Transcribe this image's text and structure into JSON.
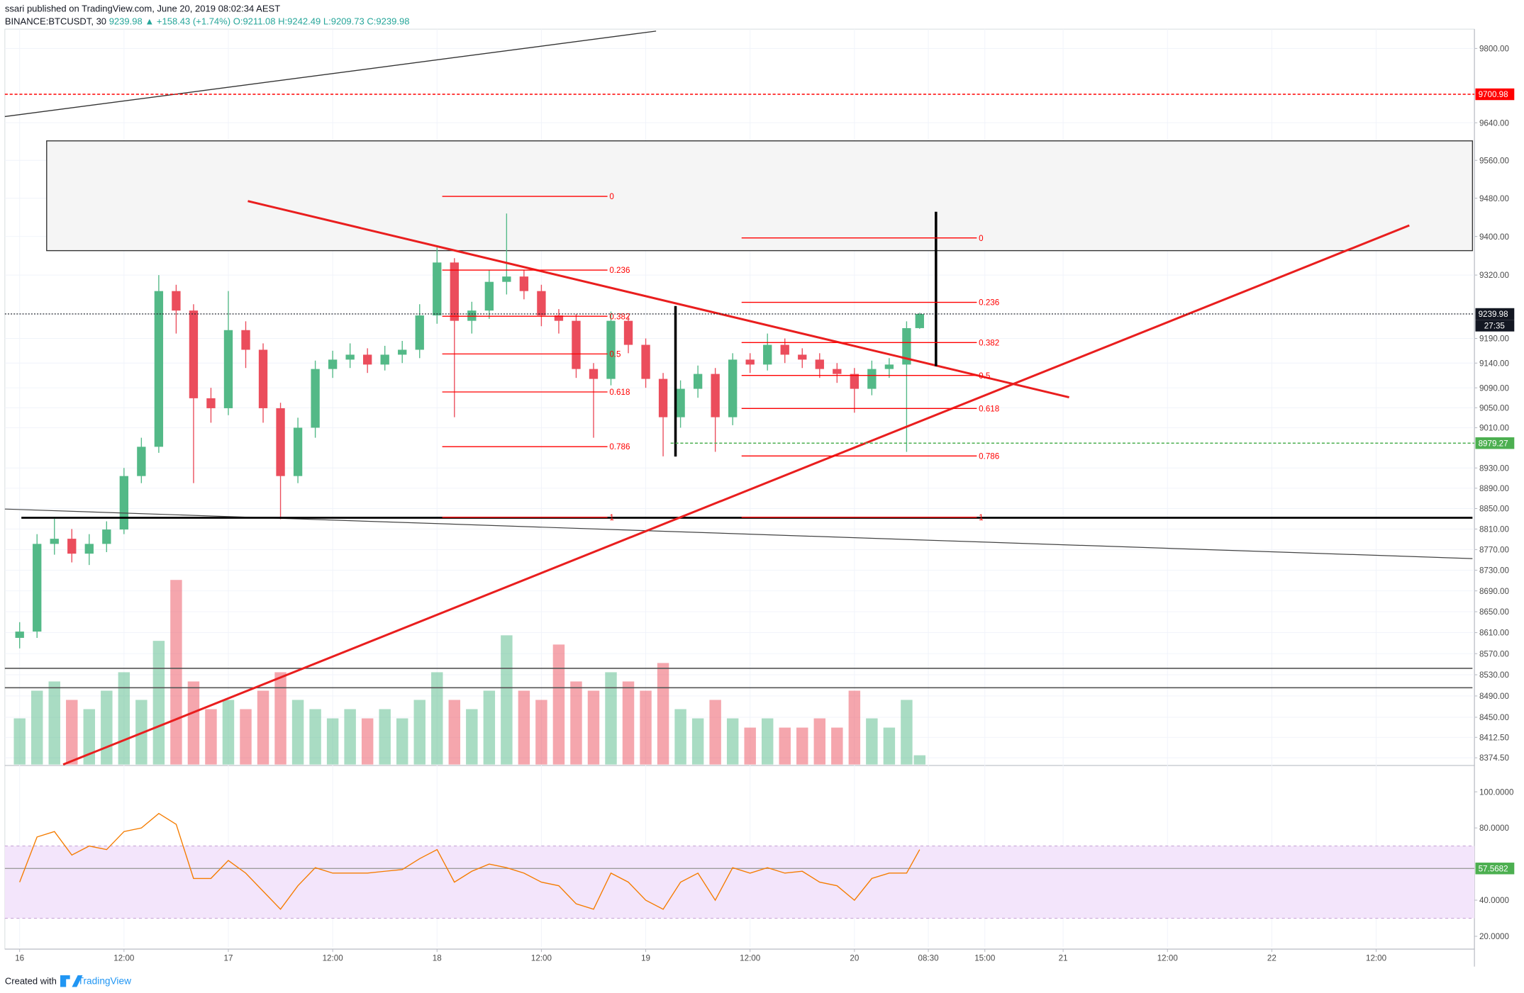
{
  "chart_data": {
    "type": "candlestick",
    "header": {
      "author_line": "ssari published on TradingView.com, June 20, 2019 08:02:34 AEST",
      "symbol": "BINANCE:BTCUSDT, 30",
      "last": "9239.98",
      "change": "▲ +158.43 (+1.74%)",
      "open": "O:9211.08",
      "high": "H:9242.49",
      "low": "L:9209.73",
      "close": "C:9239.98"
    },
    "log_scale": true,
    "up_color": "#53b987",
    "down_color": "#eb4d5c",
    "x": [
      0,
      2,
      4,
      6,
      8,
      10,
      12,
      14,
      16,
      18,
      20,
      22,
      24,
      26,
      28,
      30,
      32,
      34,
      36,
      38,
      40,
      42,
      44,
      46,
      48,
      50,
      52,
      54,
      56,
      58,
      60,
      62,
      64,
      66,
      68,
      70,
      72,
      74,
      76,
      78,
      80,
      82,
      84,
      86,
      88,
      90,
      92,
      94,
      96,
      98,
      100,
      102,
      103.5
    ],
    "open": [
      8600,
      8612,
      8781,
      8791,
      8762,
      8781,
      8809,
      8914,
      8972,
      9287,
      9247,
      9069,
      9049,
      9207,
      9167,
      9049,
      8914,
      9010,
      9128,
      9147,
      9157,
      9137,
      9157,
      9167,
      9237,
      9346,
      9226,
      9247,
      9306,
      9317,
      9287,
      9237,
      9226,
      9128,
      9108,
      9226,
      9177,
      9108,
      9031,
      9088,
      9118,
      9031,
      9147,
      9137,
      9177,
      9157,
      9147,
      9128,
      9118,
      9088,
      9128,
      9137,
      9211.08
    ],
    "high": [
      8630,
      8800,
      8830,
      8810,
      8800,
      8825,
      8930,
      8990,
      9320,
      9300,
      9260,
      9090,
      9287,
      9225,
      9180,
      9060,
      9030,
      9145,
      9165,
      9180,
      9170,
      9175,
      9185,
      9260,
      9377,
      9355,
      9265,
      9330,
      9448,
      9330,
      9300,
      9250,
      9240,
      9140,
      9245,
      9235,
      9190,
      9120,
      9105,
      9135,
      9130,
      9160,
      9160,
      9200,
      9190,
      9170,
      9160,
      9140,
      9130,
      9145,
      9150,
      9225,
      9242.49
    ],
    "low": [
      8580,
      8600,
      8760,
      8745,
      8740,
      8765,
      8800,
      8900,
      8960,
      9200,
      8900,
      9020,
      9035,
      9130,
      9020,
      8829,
      8900,
      8990,
      9110,
      9130,
      9120,
      9125,
      9140,
      9150,
      9220,
      9031,
      9200,
      9230,
      9280,
      9270,
      9215,
      9200,
      9110,
      8990,
      9095,
      9160,
      9090,
      8953,
      9010,
      9070,
      8962,
      9015,
      9120,
      9125,
      9140,
      9130,
      9110,
      9100,
      9040,
      9075,
      9110,
      8962,
      9209.73
    ],
    "close": [
      8612,
      8781,
      8791,
      8762,
      8781,
      8809,
      8914,
      8972,
      9287,
      9247,
      9069,
      9049,
      9207,
      9167,
      9049,
      8914,
      9010,
      9128,
      9147,
      9157,
      9137,
      9157,
      9167,
      9237,
      9346,
      9226,
      9247,
      9306,
      9317,
      9287,
      9237,
      9226,
      9128,
      9108,
      9226,
      9177,
      9108,
      9031,
      9088,
      9118,
      9031,
      9147,
      9137,
      9177,
      9157,
      9147,
      9128,
      9118,
      9088,
      9128,
      9137,
      9211,
      9239.98
    ],
    "volume": [
      25,
      40,
      45,
      35,
      30,
      40,
      50,
      35,
      67,
      100,
      45,
      30,
      35,
      30,
      40,
      50,
      35,
      30,
      25,
      30,
      25,
      30,
      25,
      35,
      50,
      35,
      30,
      40,
      70,
      40,
      35,
      65,
      45,
      40,
      50,
      45,
      40,
      55,
      30,
      25,
      35,
      25,
      20,
      25,
      20,
      20,
      25,
      20,
      40,
      25,
      20,
      35,
      5
    ],
    "xlim": [
      -1.7,
      167.3
    ],
    "ylim": [
      8362,
      9842
    ],
    "xticks": [
      {
        "value": 0,
        "label": "16"
      },
      {
        "value": 12,
        "label": "12:00"
      },
      {
        "value": 24,
        "label": "17"
      },
      {
        "value": 36,
        "label": "12:00"
      },
      {
        "value": 48,
        "label": "18"
      },
      {
        "value": 60,
        "label": "12:00"
      },
      {
        "value": 72,
        "label": "19"
      },
      {
        "value": 84,
        "label": "12:00"
      },
      {
        "value": 96,
        "label": "20"
      },
      {
        "value": 104.5,
        "label": "08:30"
      },
      {
        "value": 111,
        "label": "15:00"
      },
      {
        "value": 120,
        "label": "21"
      },
      {
        "value": 132,
        "label": "12:00"
      },
      {
        "value": 144,
        "label": "22"
      },
      {
        "value": 156,
        "label": "12:00"
      }
    ],
    "yticks": [
      {
        "value": 9800,
        "label": "9800.00"
      },
      {
        "value": 9640,
        "label": "9640.00"
      },
      {
        "value": 9560,
        "label": "9560.00"
      },
      {
        "value": 9480,
        "label": "9480.00"
      },
      {
        "value": 9400,
        "label": "9400.00"
      },
      {
        "value": 9320,
        "label": "9320.00"
      },
      {
        "value": 9190,
        "label": "9190.00"
      },
      {
        "value": 9140,
        "label": "9140.00"
      },
      {
        "value": 9090,
        "label": "9090.00"
      },
      {
        "value": 9050,
        "label": "9050.00"
      },
      {
        "value": 9010,
        "label": "9010.00"
      },
      {
        "value": 8930,
        "label": "8930.00"
      },
      {
        "value": 8890,
        "label": "8890.00"
      },
      {
        "value": 8850,
        "label": "8850.00"
      },
      {
        "value": 8810,
        "label": "8810.00"
      },
      {
        "value": 8770,
        "label": "8770.00"
      },
      {
        "value": 8730,
        "label": "8730.00"
      },
      {
        "value": 8690,
        "label": "8690.00"
      },
      {
        "value": 8650,
        "label": "8650.00"
      },
      {
        "value": 8610,
        "label": "8610.00"
      },
      {
        "value": 8570,
        "label": "8570.00"
      },
      {
        "value": 8530,
        "label": "8530.00"
      },
      {
        "value": 8490,
        "label": "8490.00"
      },
      {
        "value": 8450,
        "label": "8450.00"
      },
      {
        "value": 8412.5,
        "label": "8412.50"
      },
      {
        "value": 8374.5,
        "label": "8374.50"
      }
    ],
    "markers": [
      {
        "price": 9700.98,
        "color": "#ff0000"
      },
      {
        "price": 9239.98,
        "color": "#131722"
      },
      {
        "price": 8979.27,
        "color": "#4caf50"
      }
    ],
    "countdown": "27:35",
    "fibonacci": [
      {
        "high": 9484,
        "low": 8833,
        "color": "#ff0000",
        "levels": [
          0,
          0.236,
          0.382,
          0.5,
          0.618,
          0.786,
          1
        ]
      },
      {
        "high": 9397,
        "low": 8833,
        "color": "#ff0000",
        "levels": [
          0,
          0.236,
          0.382,
          0.5,
          0.618,
          0.786,
          1
        ]
      }
    ],
    "rsi": {
      "color": "#f57c00",
      "ylim": [
        14,
        113.5
      ],
      "band": [
        30,
        70
      ],
      "level": 57.5682,
      "level_color": "#4caf50",
      "yticks": [
        {
          "value": 100,
          "label": "100.0000"
        },
        {
          "value": 80,
          "label": "80.0000"
        },
        {
          "value": 40,
          "label": "40.0000"
        },
        {
          "value": 20,
          "label": "20.0000"
        }
      ],
      "values": [
        50,
        75,
        78,
        65,
        70,
        68,
        78,
        80,
        88,
        82,
        52,
        52,
        62,
        55,
        45,
        35,
        48,
        58,
        55,
        55,
        55,
        56,
        57,
        63,
        68,
        50,
        56,
        60,
        58,
        55,
        50,
        48,
        38,
        35,
        55,
        50,
        40,
        35,
        50,
        55,
        40,
        58,
        55,
        58,
        55,
        56,
        50,
        48,
        40,
        52,
        55,
        55,
        68
      ]
    },
    "footer": {
      "created": "Created with",
      "brand": "TradingView"
    }
  }
}
